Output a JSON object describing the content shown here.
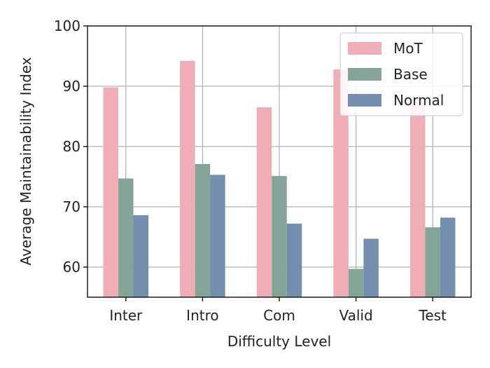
{
  "chart_data": {
    "type": "bar",
    "title": "",
    "xlabel": "Difficulty Level",
    "ylabel": "Average Maintainability Index",
    "categories": [
      "Inter",
      "Intro",
      "Com",
      "Valid",
      "Test"
    ],
    "series": [
      {
        "name": "MoT",
        "values": [
          89.8,
          94.2,
          86.5,
          92.8,
          87.5
        ],
        "color": "#efadb6"
      },
      {
        "name": "Base",
        "values": [
          74.7,
          77.1,
          75.1,
          59.7,
          66.6
        ],
        "color": "#84a498"
      },
      {
        "name": "Normal",
        "values": [
          68.6,
          75.3,
          67.2,
          64.7,
          68.2
        ],
        "color": "#748eb0"
      }
    ],
    "ylim": [
      55,
      100
    ],
    "yticks": [
      60,
      70,
      80,
      90,
      100
    ],
    "grid": true,
    "legend_position": "top-right"
  }
}
